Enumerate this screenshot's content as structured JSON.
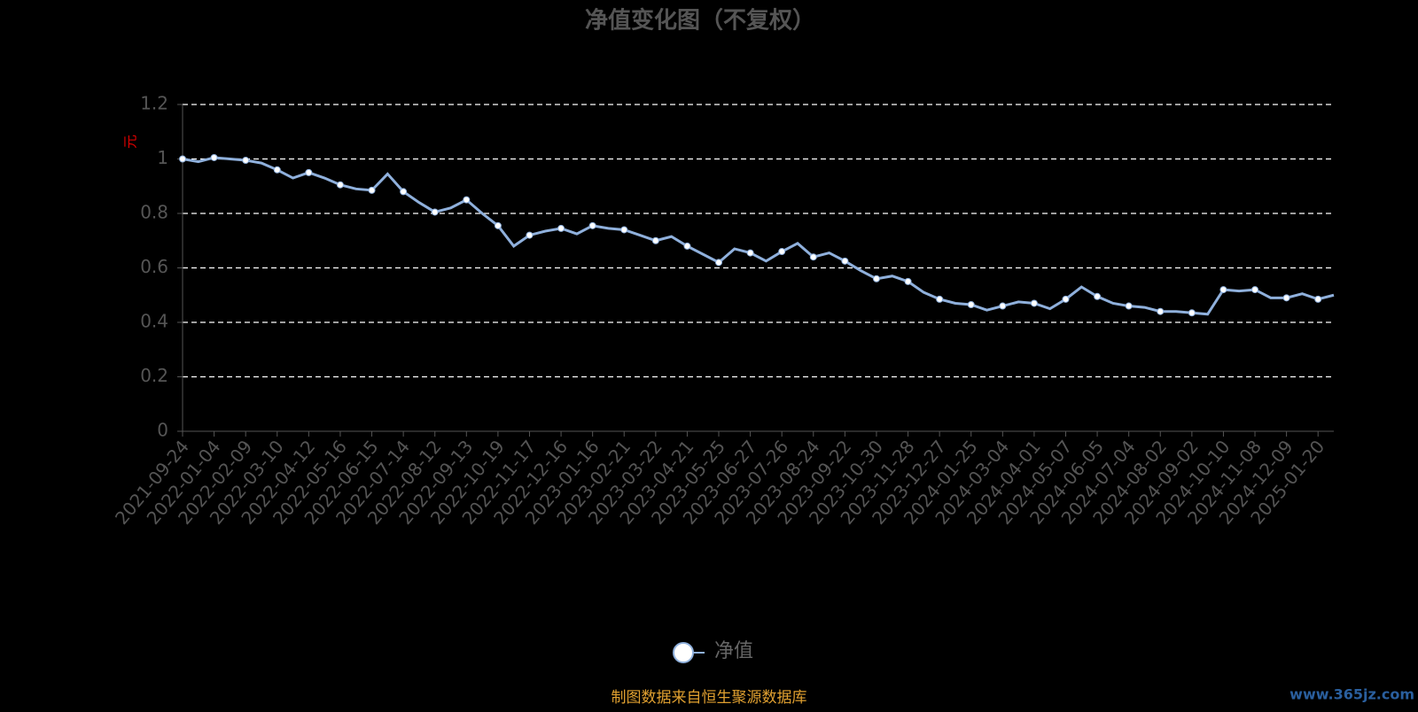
{
  "chart_data": {
    "type": "line",
    "title": "净值变化图（不复权）",
    "y_label": "元",
    "categories": [
      "2021-09-24",
      null,
      "2022-01-04",
      null,
      "2022-02-09",
      null,
      "2022-03-10",
      null,
      "2022-04-12",
      null,
      "2022-05-16",
      null,
      "2022-06-15",
      null,
      "2022-07-14",
      null,
      "2022-08-12",
      null,
      "2022-09-13",
      null,
      "2022-10-19",
      null,
      "2022-11-17",
      null,
      "2022-12-16",
      null,
      "2023-01-16",
      null,
      "2023-02-21",
      null,
      "2023-03-22",
      null,
      "2023-04-21",
      null,
      "2023-05-25",
      null,
      "2023-06-27",
      null,
      "2023-07-26",
      null,
      "2023-08-24",
      null,
      "2023-09-22",
      null,
      "2023-10-30",
      null,
      "2023-11-28",
      null,
      "2023-12-27",
      null,
      "2024-01-25",
      null,
      "2024-03-04",
      null,
      "2024-04-01",
      null,
      "2024-05-07",
      null,
      "2024-06-05",
      null,
      "2024-07-04",
      null,
      "2024-08-02",
      null,
      "2024-09-02",
      null,
      "2024-10-10",
      null,
      "2024-11-08",
      null,
      "2024-12-09",
      null,
      "2025-01-20",
      null
    ],
    "series": [
      {
        "name": "净值",
        "color": "#8fb0dc",
        "values": [
          1.0,
          0.99,
          1.005,
          1.0,
          0.995,
          0.985,
          0.96,
          0.93,
          0.95,
          0.93,
          0.905,
          0.89,
          0.885,
          0.945,
          0.88,
          0.84,
          0.805,
          0.82,
          0.85,
          0.8,
          0.755,
          0.68,
          0.72,
          0.735,
          0.745,
          0.725,
          0.755,
          0.745,
          0.74,
          0.72,
          0.7,
          0.715,
          0.68,
          0.65,
          0.62,
          0.67,
          0.655,
          0.625,
          0.66,
          0.69,
          0.64,
          0.655,
          0.625,
          0.59,
          0.56,
          0.57,
          0.55,
          0.51,
          0.485,
          0.47,
          0.465,
          0.445,
          0.46,
          0.475,
          0.47,
          0.45,
          0.485,
          0.53,
          0.495,
          0.47,
          0.46,
          0.455,
          0.44,
          0.44,
          0.435,
          0.43,
          0.52,
          0.515,
          0.52,
          0.49,
          0.49,
          0.505,
          0.485,
          0.5
        ]
      }
    ],
    "ylim": [
      0,
      1.2
    ],
    "yticks": [
      0,
      0.2,
      0.4,
      0.6,
      0.8,
      1,
      1.2
    ],
    "grid": true
  },
  "footer": {
    "source": "制图数据来自恒生聚源数据库",
    "watermark": "www.365jz.com"
  }
}
